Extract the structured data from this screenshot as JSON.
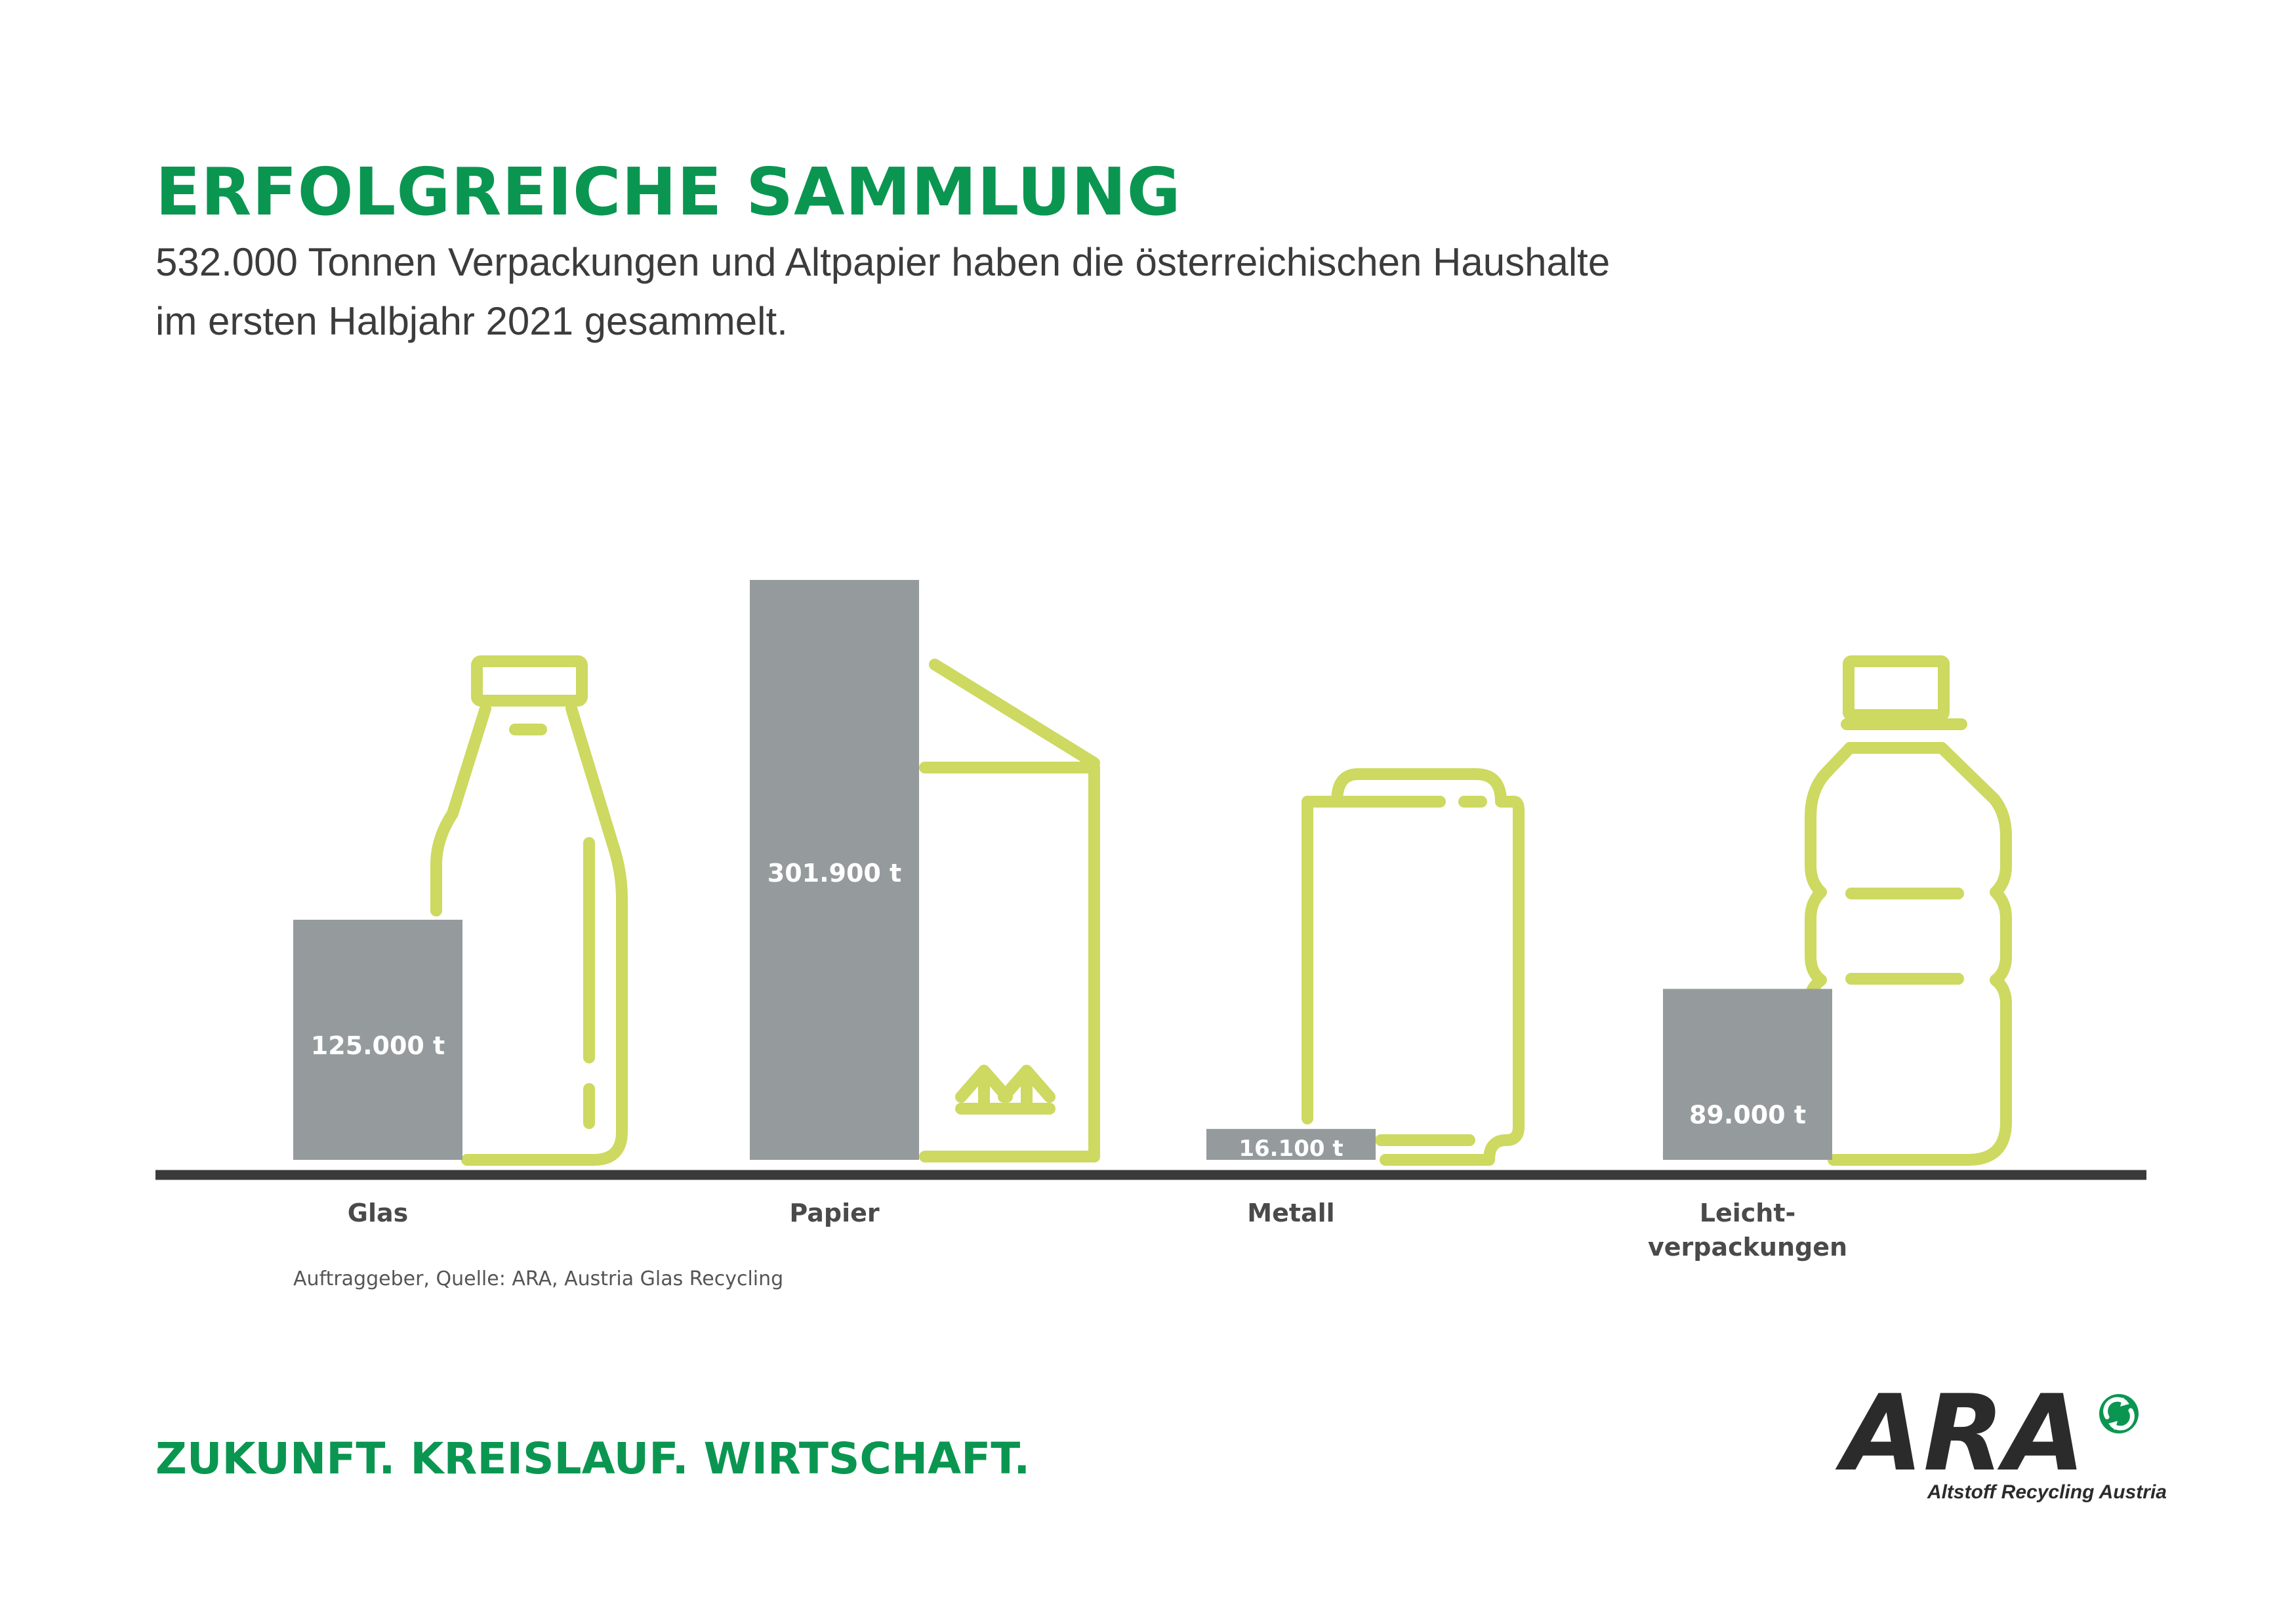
{
  "header": {
    "title": "ERFOLGREICHE SAMMLUNG",
    "subtitle_line1": "532.000 Tonnen Verpackungen und Altpapier haben die österreichischen Haushalte",
    "subtitle_line2": "im ersten Halbjahr 2021 gesammelt."
  },
  "chart_data": {
    "type": "bar",
    "title": "ERFOLGREICHE SAMMLUNG",
    "categories": [
      "Glas",
      "Papier",
      "Metall",
      "Leicht-\nverpackungen"
    ],
    "values": [
      125000,
      301900,
      16100,
      89000
    ],
    "value_labels": [
      "125.000 t",
      "301.900 t",
      "16.100 t",
      "89.000 t"
    ],
    "unit": "t",
    "ylim": [
      0,
      301900
    ],
    "grid": false,
    "legend": "none"
  },
  "icons": [
    "glass-bottle-icon",
    "paper-box-icon",
    "metal-can-icon",
    "plastic-bottle-icon"
  ],
  "colors": {
    "green": "#0a9651",
    "lime": "#cdd960",
    "bar": "#959b9c",
    "axis": "#3a3a3a"
  },
  "source": "Auftraggeber, Quelle: ARA, Austria Glas Recycling",
  "footer": {
    "slogan": "ZUKUNFT. KREISLAUF. WIRTSCHAFT.",
    "logo_text": "ARA",
    "logo_subtitle": "Altstoff Recycling Austria"
  }
}
